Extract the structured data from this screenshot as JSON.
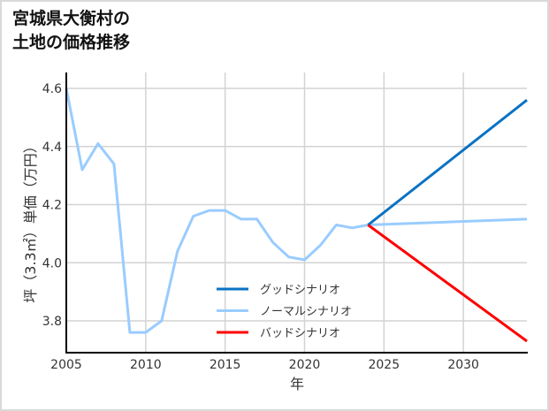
{
  "title_lines": [
    "宮城県大衡村の",
    "土地の価格推移"
  ],
  "colors": {
    "good": "#0a72c4",
    "normal": "#99ccff",
    "bad": "#ff0000",
    "grid": "#d3d3d3",
    "axis": "#000000",
    "border": "#d9d9d9"
  },
  "chart_data": {
    "type": "line",
    "title": "宮城県大衡村の土地の価格推移",
    "xlabel": "年",
    "ylabel": "坪（3.3㎡）単価（万円）",
    "xlim": [
      2005,
      2034
    ],
    "ylim": [
      3.69,
      4.655
    ],
    "x_ticks": [
      2005,
      2010,
      2015,
      2020,
      2025,
      2030
    ],
    "y_ticks": [
      3.8,
      4.0,
      4.2,
      4.4,
      4.6
    ],
    "y_tick_labels": [
      "3.8",
      "4.0",
      "4.2",
      "4.4",
      "4.6"
    ],
    "grid": true,
    "legend_position": "lower center",
    "series": [
      {
        "name": "グッドシナリオ",
        "color": "#0a72c4",
        "x": [
          2024,
          2034
        ],
        "values": [
          4.13,
          4.56
        ]
      },
      {
        "name": "ノーマルシナリオ",
        "color": "#99ccff",
        "x": [
          2005,
          2006,
          2007,
          2008,
          2009,
          2010,
          2011,
          2012,
          2013,
          2014,
          2015,
          2016,
          2017,
          2018,
          2019,
          2020,
          2021,
          2022,
          2023,
          2024,
          2034
        ],
        "values": [
          4.6,
          4.32,
          4.41,
          4.34,
          3.76,
          3.76,
          3.8,
          4.04,
          4.16,
          4.18,
          4.18,
          4.15,
          4.15,
          4.07,
          4.02,
          4.01,
          4.06,
          4.13,
          4.12,
          4.13,
          4.15
        ]
      },
      {
        "name": "バッドシナリオ",
        "color": "#ff0000",
        "x": [
          2024,
          2034
        ],
        "values": [
          4.13,
          3.73
        ]
      }
    ]
  }
}
